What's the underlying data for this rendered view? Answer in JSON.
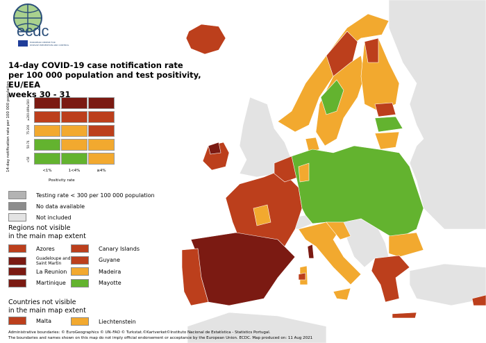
{
  "logo": {
    "text": "ecdc",
    "subtitle": "EUROPEAN CENTRE FOR DISEASE PREVENTION AND CONTROL"
  },
  "title": {
    "line1": "14-day COVID-19 case notification rate",
    "line2": "per 100 000 population and test positivity, EU/EEA",
    "line3": "weeks 30 - 31"
  },
  "colors": {
    "dark_red": "#7b1a12",
    "red": "#bc3f1c",
    "orange": "#f2a92f",
    "green": "#63b32f",
    "grey_testing": "#b3b3b3",
    "grey_nodata": "#8c8c8c",
    "not_included": "#e3e3e3"
  },
  "matrix": {
    "y_title": "14-day notification rate per 100 000 population",
    "x_title": "Positivity rate",
    "rows": [
      "≥500",
      "≥200-499",
      "75-200",
      "50-74",
      "<50"
    ],
    "cols": [
      "<1%",
      "1<4%",
      "≥4%"
    ],
    "cells": [
      [
        "dark_red",
        "dark_red",
        "dark_red"
      ],
      [
        "red",
        "red",
        "red"
      ],
      [
        "orange",
        "orange",
        "red"
      ],
      [
        "green",
        "orange",
        "orange"
      ],
      [
        "green",
        "green",
        "orange"
      ]
    ]
  },
  "legend": {
    "status": [
      {
        "label": "Testing rate < 300 per 100 000 population",
        "color": "grey_testing"
      },
      {
        "label": "No data available",
        "color": "grey_nodata"
      },
      {
        "label": "Not included",
        "color": "not_included"
      }
    ],
    "regions_heading": {
      "line1": "Regions not visible",
      "line2": "in the main map extent"
    },
    "regions_left": [
      {
        "label": "Azores",
        "color": "red"
      },
      {
        "label": "Guadeloupe and Saint Martin",
        "color": "dark_red"
      },
      {
        "label": "La Reunion",
        "color": "dark_red"
      },
      {
        "label": "Martinique",
        "color": "dark_red"
      }
    ],
    "regions_right": [
      {
        "label": "Canary Islands",
        "color": "red"
      },
      {
        "label": "Guyane",
        "color": "red"
      },
      {
        "label": "Madeira",
        "color": "orange"
      },
      {
        "label": "Mayotte",
        "color": "green"
      }
    ],
    "countries_heading": {
      "line1": "Countries not visible",
      "line2": "in the main map extent"
    },
    "countries": [
      {
        "label": "Malta",
        "color": "red"
      },
      {
        "label": "Liechtenstein",
        "color": "orange"
      }
    ]
  },
  "footer": {
    "line1": "Administrative boundaries: © EuroGeographics © UN–FAO © Turkstat.©Kartverket©Instituto Nacional de Estatística - Statistics Portugal.",
    "line2": "The boundaries and names shown on this map do not imply official endorsement or acceptance by the European Union. ECDC. Map produced on: 11 Aug 2021"
  }
}
